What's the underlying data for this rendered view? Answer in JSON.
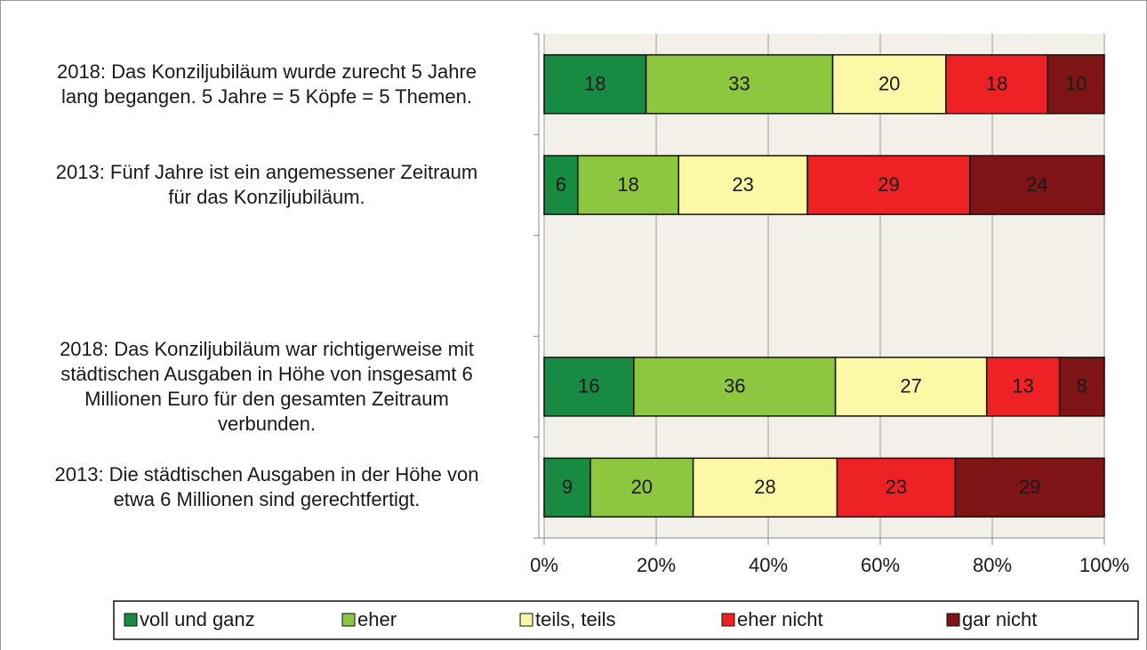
{
  "chart_data": {
    "type": "bar",
    "orientation": "horizontal",
    "stacking": "percent",
    "categories": [
      "2018: Das Konziljubiläum wurde zurecht 5 Jahre\nlang begangen. 5 Jahre = 5 Köpfe = 5 Themen.",
      "2013: Fünf Jahre ist ein angemessener Zeitraum\nfür das Konziljubiläum.",
      null,
      "2018: Das Konziljubiläum war richtigerweise mit\nstädtischen Ausgaben in Höhe von insgesamt 6\nMillionen Euro für den gesamten Zeitraum\nverbunden.",
      "2013: Die städtischen Ausgaben in der Höhe von\netwa 6 Millionen sind gerechtfertigt."
    ],
    "series": [
      {
        "name": "voll und ganz",
        "color": "#178a43",
        "values": [
          18,
          6,
          null,
          16,
          9
        ]
      },
      {
        "name": "eher",
        "color": "#8dc63f",
        "values": [
          33,
          18,
          null,
          36,
          20
        ]
      },
      {
        "name": "teils, teils",
        "color": "#fdf8a6",
        "values": [
          20,
          23,
          null,
          27,
          28
        ]
      },
      {
        "name": "eher nicht",
        "color": "#ee2225",
        "values": [
          18,
          29,
          null,
          13,
          23
        ]
      },
      {
        "name": "gar nicht",
        "color": "#7f1416",
        "values": [
          10,
          24,
          null,
          8,
          29
        ]
      }
    ],
    "xlim": [
      0,
      100
    ],
    "xticks": [
      {
        "value": 0,
        "label": "0%"
      },
      {
        "value": 20,
        "label": "20%"
      },
      {
        "value": 40,
        "label": "40%"
      },
      {
        "value": 60,
        "label": "60%"
      },
      {
        "value": 80,
        "label": "80%"
      },
      {
        "value": 100,
        "label": "100%"
      }
    ],
    "grid": true,
    "legend": "bottom"
  }
}
